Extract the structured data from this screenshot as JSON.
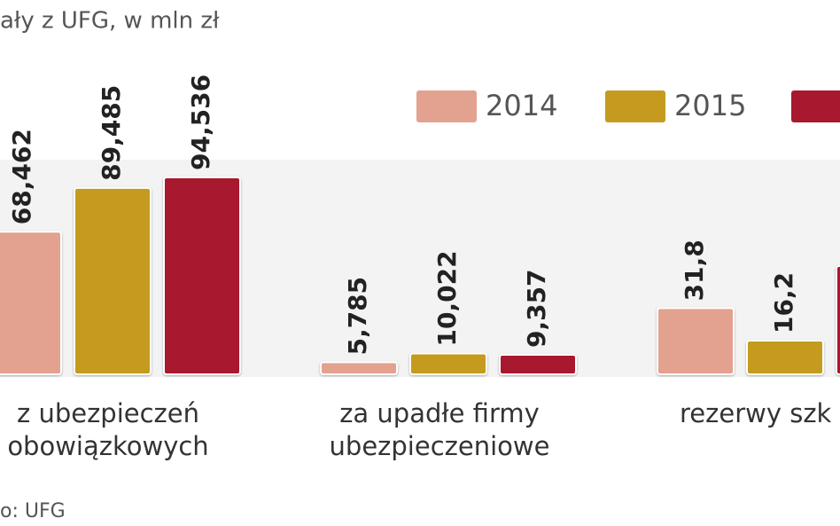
{
  "chart_data": {
    "type": "bar",
    "title": "ały z UFG, w mln zł",
    "categories": [
      [
        "z ubezpieczeń",
        "obowiązkowych"
      ],
      [
        "za upadłe firmy",
        "ubezpieczeniowe"
      ],
      [
        "rezerwy szk"
      ]
    ],
    "series": [
      {
        "name": "2014",
        "color": "#e3a18f",
        "values": [
          68.462,
          5.785,
          31.8
        ],
        "value_labels": [
          "68,462",
          "5,785",
          "31,8"
        ]
      },
      {
        "name": "2015",
        "color": "#c49b1f",
        "values": [
          89.485,
          10.022,
          16.2
        ],
        "value_labels": [
          "89,485",
          "10,022",
          "16,2"
        ]
      },
      {
        "color": "#a8182f",
        "values": [
          94.536,
          9.357,
          52
        ],
        "value_labels": [
          "94,536",
          "9,357",
          null
        ]
      }
    ],
    "source": "o: UFG"
  }
}
